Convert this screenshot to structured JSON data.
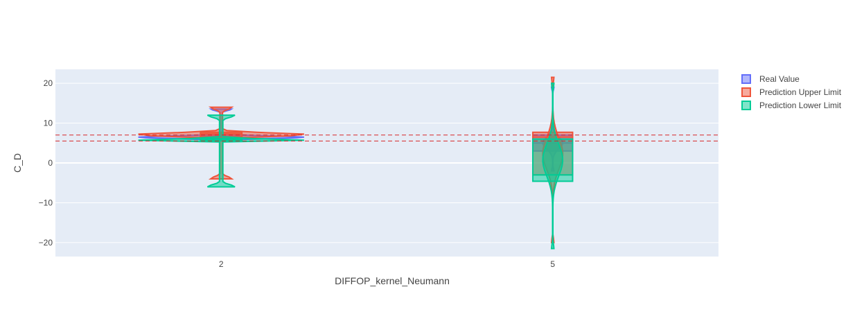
{
  "chart_data": {
    "type": "violin",
    "xlabel": "DIFFOP_kernel_Neumann",
    "ylabel": "C_D",
    "categories": [
      "2",
      "5"
    ],
    "ylim": [
      -23.5,
      23.5
    ],
    "yticks": [
      -20,
      -10,
      0,
      10,
      20
    ],
    "yticklabels": [
      "−20",
      "−10",
      "0",
      "10",
      "20"
    ],
    "grid": true,
    "background": "#E5ECF6",
    "legend_position": "top-right",
    "reference_lines": [
      {
        "y": 7.0,
        "color": "#D62728",
        "style": "dashed"
      },
      {
        "y": 5.5,
        "color": "#D62728",
        "style": "dashed"
      }
    ],
    "series": [
      {
        "name": "Real Value",
        "color": "#636EFA",
        "violins": [
          {
            "category": "2",
            "min": 5.5,
            "max": 13.5,
            "box": [
              6.0,
              6.9
            ],
            "median": 6.5
          },
          {
            "category": "5",
            "min": -2.0,
            "max": 19.0,
            "box": [
              3.0,
              7.0
            ],
            "median": 5.0
          }
        ]
      },
      {
        "name": "Prediction Upper Limit",
        "color": "#EF553B",
        "violins": [
          {
            "category": "2",
            "min": -4.0,
            "max": 14.0,
            "box": [
              6.5,
              7.7
            ],
            "median": 7.3
          },
          {
            "category": "5",
            "min": -20.0,
            "max": 21.5,
            "box": [
              -3.0,
              7.7
            ],
            "median": 6.5
          }
        ]
      },
      {
        "name": "Prediction Lower Limit",
        "color": "#00CC96",
        "violins": [
          {
            "category": "2",
            "min": -6.0,
            "max": 12.0,
            "box": [
              5.6,
              6.1
            ],
            "median": 5.9
          },
          {
            "category": "5",
            "min": -21.5,
            "max": 20.0,
            "box": [
              -4.6,
              6.0
            ],
            "median": -3.0
          }
        ]
      }
    ]
  }
}
